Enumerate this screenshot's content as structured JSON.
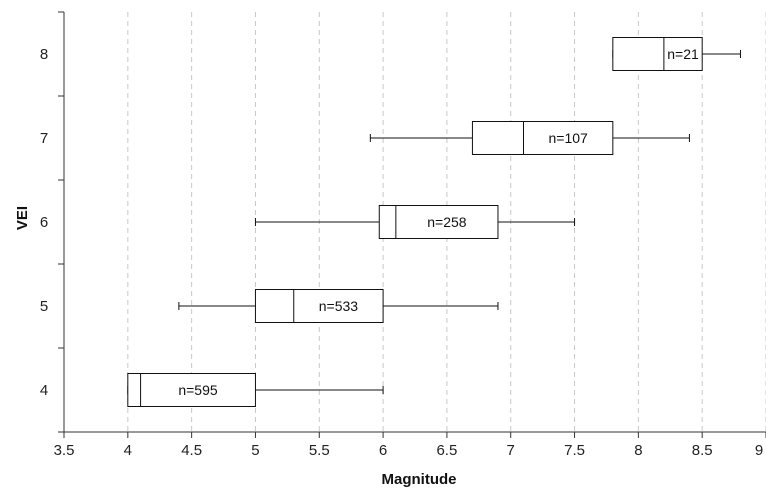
{
  "chart_data": {
    "type": "box",
    "orientation": "horizontal",
    "xlabel": "Magnitude",
    "ylabel": "VEI",
    "xlim": [
      3.5,
      9
    ],
    "xticks": [
      "3.5",
      "4",
      "4.5",
      "5",
      "5.5",
      "6",
      "6.5",
      "7",
      "7.5",
      "8",
      "8.5",
      "9"
    ],
    "categories": [
      "4",
      "5",
      "6",
      "7",
      "8"
    ],
    "grid": "vertical dashed",
    "boxes": [
      {
        "category": "4",
        "whisker_low": 4.0,
        "q1": 4.0,
        "median": 4.1,
        "q3": 5.0,
        "whisker_high": 6.0,
        "n_label": "n=595"
      },
      {
        "category": "5",
        "whisker_low": 4.4,
        "q1": 5.0,
        "median": 5.3,
        "q3": 6.0,
        "whisker_high": 6.9,
        "n_label": "n=533"
      },
      {
        "category": "6",
        "whisker_low": 5.0,
        "q1": 5.97,
        "median": 6.1,
        "q3": 6.9,
        "whisker_high": 7.5,
        "n_label": "n=258"
      },
      {
        "category": "7",
        "whisker_low": 5.9,
        "q1": 6.7,
        "median": 7.1,
        "q3": 7.8,
        "whisker_high": 8.4,
        "n_label": "n=107"
      },
      {
        "category": "8",
        "whisker_low": 7.8,
        "q1": 7.8,
        "median": 8.2,
        "q3": 8.5,
        "whisker_high": 8.8,
        "n_label": "n=21"
      }
    ]
  }
}
